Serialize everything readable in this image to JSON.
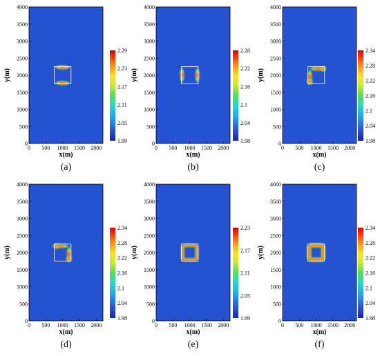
{
  "figure": {
    "background": "#ffffff"
  },
  "chart_data": [
    {
      "type": "heatmap",
      "label": "(a)",
      "xlabel": "x(m)",
      "ylabel": "y(m)",
      "xlim": [
        0,
        2200
      ],
      "ylim": [
        0,
        4000
      ],
      "xticks": [
        "0",
        "500",
        "1000",
        "1500",
        "2000"
      ],
      "yticks": [
        "0",
        "500",
        "1000",
        "1500",
        "2000",
        "2500",
        "3000",
        "3500",
        "4000"
      ],
      "colorbar": {
        "min": 1.99,
        "max": 2.29,
        "ticks": [
          "2.29",
          "2.23",
          "2.17",
          "2.11",
          "2.05",
          "1.99"
        ]
      },
      "background_value": 1.99,
      "square": {
        "x": [
          750,
          1250
        ],
        "y": [
          1750,
          2250
        ],
        "outline": "#ffffff"
      },
      "anomaly": "horizontal edges (top and bottom)"
    },
    {
      "type": "heatmap",
      "label": "(b)",
      "xlabel": "x(m)",
      "ylabel": "y(m)",
      "xlim": [
        0,
        2200
      ],
      "ylim": [
        0,
        4000
      ],
      "xticks": [
        "0",
        "500",
        "1000",
        "1500",
        "2000"
      ],
      "yticks": [
        "0",
        "500",
        "1000",
        "1500",
        "2000",
        "2500",
        "3000",
        "3500",
        "4000"
      ],
      "colorbar": {
        "min": 1.98,
        "max": 2.28,
        "ticks": [
          "2.28",
          "2.22",
          "2.16",
          "2.1",
          "2.04",
          "1.98"
        ]
      },
      "background_value": 1.98,
      "square": {
        "x": [
          750,
          1250
        ],
        "y": [
          1750,
          2250
        ],
        "outline": "#ffffff"
      },
      "anomaly": "vertical edges (left and right)"
    },
    {
      "type": "heatmap",
      "label": "(c)",
      "xlabel": "x(m)",
      "ylabel": "y(m)",
      "xlim": [
        0,
        2200
      ],
      "ylim": [
        0,
        4000
      ],
      "xticks": [
        "0",
        "500",
        "1000",
        "1500",
        "2000"
      ],
      "yticks": [
        "0",
        "500",
        "1000",
        "1500",
        "2000",
        "2500",
        "3000",
        "3500",
        "4000"
      ],
      "colorbar": {
        "min": 1.98,
        "max": 2.34,
        "ticks": [
          "2.34",
          "2.28",
          "2.22",
          "2.16",
          "2.1",
          "2.04",
          "1.98"
        ]
      },
      "background_value": 1.98,
      "square": {
        "x": [
          750,
          1250
        ],
        "y": [
          1750,
          2250
        ],
        "outline": "#ffffff"
      },
      "anomaly": "top and left edges, strong at top-right and bottom-left corners"
    },
    {
      "type": "heatmap",
      "label": "(d)",
      "xlabel": "x(m)",
      "ylabel": "y(m)",
      "xlim": [
        0,
        2200
      ],
      "ylim": [
        0,
        4000
      ],
      "xticks": [
        "0",
        "500",
        "1000",
        "1500",
        "2000"
      ],
      "yticks": [
        "0",
        "500",
        "1000",
        "1500",
        "2000",
        "2500",
        "3000",
        "3500",
        "4000"
      ],
      "colorbar": {
        "min": 1.98,
        "max": 2.34,
        "ticks": [
          "2.34",
          "2.28",
          "2.22",
          "2.16",
          "2.1",
          "2.04",
          "1.98"
        ]
      },
      "background_value": 1.98,
      "square": {
        "x": [
          750,
          1250
        ],
        "y": [
          1750,
          2250
        ],
        "outline": "#ffffff"
      },
      "anomaly": "top and right edges, strong at top-left and bottom-right corners"
    },
    {
      "type": "heatmap",
      "label": "(e)",
      "xlabel": "x(m)",
      "ylabel": "y(m)",
      "xlim": [
        0,
        2200
      ],
      "ylim": [
        0,
        4000
      ],
      "xticks": [
        "0",
        "500",
        "1000",
        "1500",
        "2000"
      ],
      "yticks": [
        "0",
        "500",
        "1000",
        "1500",
        "2000",
        "2500",
        "3000",
        "3500",
        "4000"
      ],
      "colorbar": {
        "min": 1.99,
        "max": 2.23,
        "ticks": [
          "2.23",
          "2.17",
          "2.11",
          "2.05",
          "1.99"
        ]
      },
      "background_value": 1.99,
      "square": {
        "x": [
          750,
          1250
        ],
        "y": [
          1750,
          2250
        ],
        "outline": "#ffffff"
      },
      "anomaly": "all four edges"
    },
    {
      "type": "heatmap",
      "label": "(f)",
      "xlabel": "x(m)",
      "ylabel": "y(m)",
      "xlim": [
        0,
        2200
      ],
      "ylim": [
        0,
        4000
      ],
      "xticks": [
        "0",
        "500",
        "1000",
        "1500",
        "2000"
      ],
      "yticks": [
        "0",
        "500",
        "1000",
        "1500",
        "2000",
        "2500",
        "3000",
        "3500",
        "4000"
      ],
      "colorbar": {
        "min": 1.98,
        "max": 2.34,
        "ticks": [
          "2.34",
          "2.28",
          "2.22",
          "2.16",
          "2.1",
          "2.04",
          "1.98"
        ]
      },
      "background_value": 1.98,
      "square": {
        "x": [
          750,
          1250
        ],
        "y": [
          1750,
          2250
        ],
        "outline": "#ffffff"
      },
      "anomaly": "all four edges, strongest"
    }
  ],
  "colormap": [
    "#1428a8",
    "#2a4fd8",
    "#1fa0f0",
    "#22d8d0",
    "#52e05a",
    "#c8ee30",
    "#ffe020",
    "#ff8a10",
    "#ff2a00",
    "#d80000"
  ],
  "background_color": "#2452d2",
  "anomaly_colors": {
    "core": "#ff3a10",
    "mid": "#ffcf20",
    "edge": "#3ecc58"
  }
}
